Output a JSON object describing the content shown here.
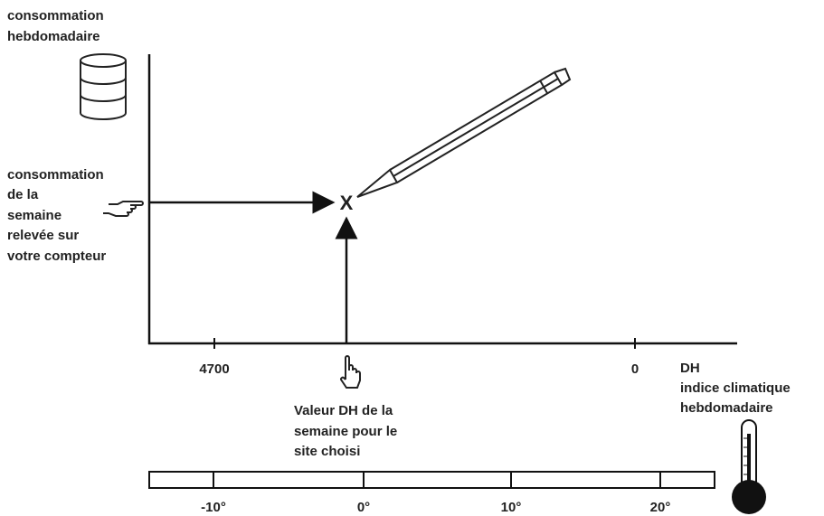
{
  "y_axis_label": [
    "consommation",
    "hebdomadaire"
  ],
  "reading_label": [
    "consommation",
    "de la",
    "semaine",
    "relevée sur",
    "votre compteur"
  ],
  "point_marker": "X",
  "dh_ticks": [
    "4700",
    "0"
  ],
  "x_axis_label": [
    "DH",
    "indice climatique",
    "hebdomadaire"
  ],
  "annotation": [
    "Valeur DH de la",
    "semaine pour le",
    "site choisi"
  ],
  "temperature_ticks": [
    "-10°",
    "0°",
    "10°",
    "20°"
  ]
}
